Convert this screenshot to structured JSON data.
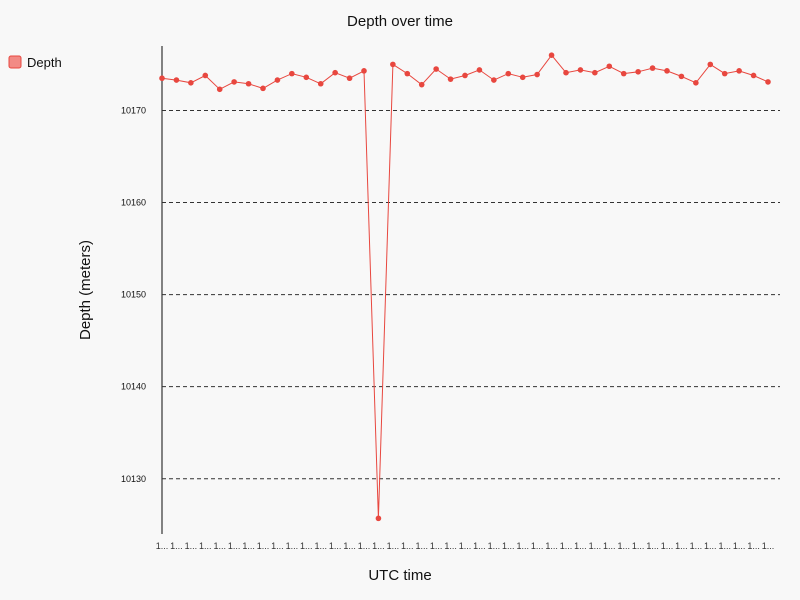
{
  "chart_data": {
    "type": "line",
    "title": "Depth over time",
    "xlabel": "UTC time",
    "ylabel": "Depth (meters)",
    "ylim": [
      10124,
      10177
    ],
    "yticks": [
      10130,
      10140,
      10150,
      10160,
      10170
    ],
    "grid": "horizontal dashed",
    "legend_position": "top-left",
    "x_tick_label": "1...",
    "series": [
      {
        "name": "Depth",
        "color": "#e8473f",
        "legend_color": "#f28a85",
        "values": [
          10173.5,
          10173.3,
          10173.0,
          10173.8,
          10172.3,
          10173.1,
          10172.9,
          10172.4,
          10173.3,
          10174.0,
          10173.6,
          10172.9,
          10174.1,
          10173.5,
          10174.3,
          10125.7,
          10175.0,
          10174.0,
          10172.8,
          10174.5,
          10173.4,
          10173.8,
          10174.4,
          10173.3,
          10174.0,
          10173.6,
          10173.9,
          10176.0,
          10174.1,
          10174.4,
          10174.1,
          10174.8,
          10174.0,
          10174.2,
          10174.6,
          10174.3,
          10173.7,
          10173.0,
          10175.0,
          10174.0,
          10174.3,
          10173.8,
          10173.1
        ]
      }
    ]
  }
}
